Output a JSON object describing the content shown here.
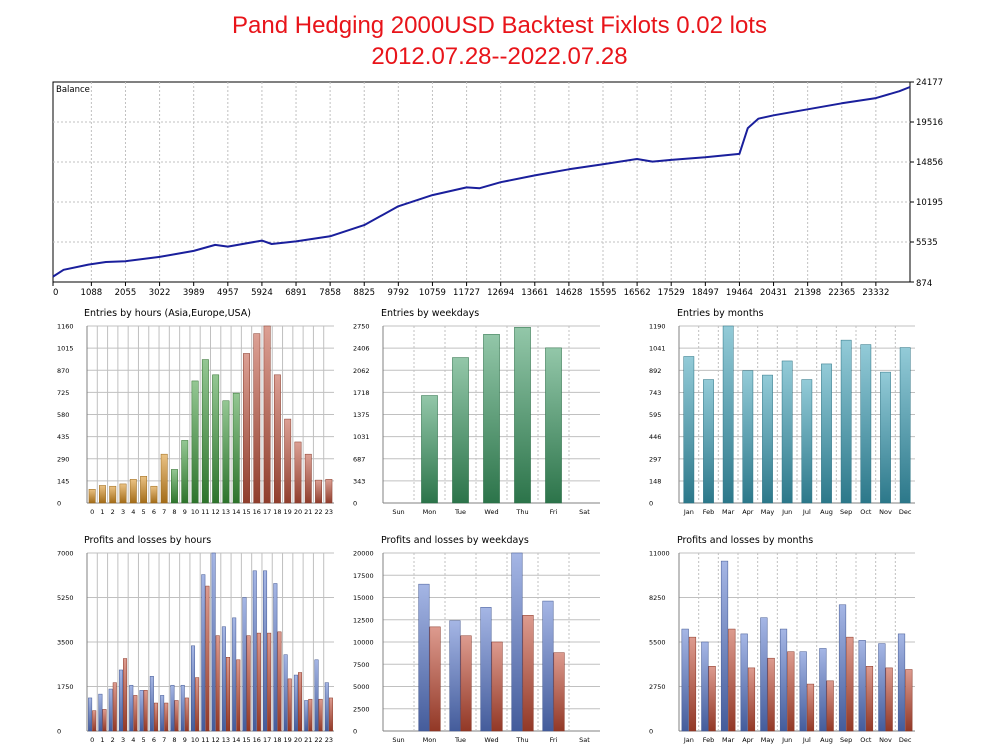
{
  "page": {
    "title_line1": "Pand Hedging 2000USD Backtest Fixlots 0.02 lots",
    "title_line2": "2012.07.28--2022.07.28"
  },
  "colors": {
    "balance_line": "#1a1f9c",
    "title": "#e8141a",
    "grid": "#c0c0c0",
    "asia": "#d99020",
    "europe": "#3d9a3a",
    "usa": "#c0523c",
    "weekday": "#3a9a62",
    "month": "#3aa0b8",
    "profit": "#5b7bcf",
    "loss": "#c24a33"
  },
  "chart_data": [
    {
      "id": "balance",
      "type": "line",
      "title": "Balance",
      "x_ticks": [
        "0",
        "1088",
        "2055",
        "3022",
        "3989",
        "4957",
        "5924",
        "6891",
        "7858",
        "8825",
        "9792",
        "10759",
        "11727",
        "12694",
        "13661",
        "14628",
        "15595",
        "16562",
        "17529",
        "18497",
        "19464",
        "20431",
        "21398",
        "22365",
        "23332"
      ],
      "y_ticks": [
        "874",
        "5535",
        "10195",
        "14856",
        "19516",
        "24177"
      ],
      "xlim": [
        0,
        24300
      ],
      "ylim": [
        874,
        24177
      ],
      "grid": true,
      "x": [
        0,
        300,
        1000,
        1500,
        2055,
        3022,
        3989,
        4600,
        4957,
        5924,
        6200,
        6891,
        7858,
        8825,
        9792,
        10759,
        11727,
        12100,
        12694,
        13661,
        14628,
        15595,
        16562,
        17000,
        17529,
        18497,
        19464,
        19700,
        20000,
        20431,
        21398,
        22365,
        23332,
        24000,
        24300
      ],
      "y": [
        1500,
        2300,
        2900,
        3200,
        3300,
        3800,
        4500,
        5200,
        5000,
        5700,
        5300,
        5600,
        6200,
        7500,
        9700,
        11000,
        11900,
        11800,
        12500,
        13300,
        14000,
        14600,
        15200,
        14900,
        15100,
        15400,
        15800,
        18800,
        19900,
        20300,
        21000,
        21700,
        22300,
        23100,
        23600
      ]
    },
    {
      "id": "entries_hours",
      "type": "bar",
      "title": "Entries by hours (Asia,Europe,USA)",
      "categories": [
        "0",
        "1",
        "2",
        "3",
        "4",
        "5",
        "6",
        "7",
        "8",
        "9",
        "10",
        "11",
        "12",
        "13",
        "14",
        "15",
        "16",
        "17",
        "18",
        "19",
        "20",
        "21",
        "22",
        "23"
      ],
      "values": [
        90,
        115,
        110,
        125,
        155,
        175,
        110,
        320,
        220,
        410,
        800,
        940,
        840,
        670,
        720,
        980,
        1110,
        1160,
        840,
        550,
        400,
        320,
        150,
        155
      ],
      "color_groups": [
        "asia",
        "asia",
        "asia",
        "asia",
        "asia",
        "asia",
        "asia",
        "asia",
        "europe",
        "europe",
        "europe",
        "europe",
        "europe",
        "europe",
        "europe",
        "usa",
        "usa",
        "usa",
        "usa",
        "usa",
        "usa",
        "usa",
        "usa",
        "usa"
      ],
      "y_ticks": [
        "0",
        "145",
        "290",
        "435",
        "580",
        "725",
        "870",
        "1015",
        "1160"
      ],
      "ylim": [
        0,
        1160
      ]
    },
    {
      "id": "entries_weekdays",
      "type": "bar",
      "title": "Entries by weekdays",
      "categories": [
        "Sun",
        "Mon",
        "Tue",
        "Wed",
        "Thu",
        "Fri",
        "Sat"
      ],
      "values": [
        0,
        1670,
        2260,
        2620,
        2730,
        2410,
        0
      ],
      "y_ticks": [
        "0",
        "343",
        "687",
        "1031",
        "1375",
        "1718",
        "2062",
        "2406",
        "2750"
      ],
      "ylim": [
        0,
        2750
      ]
    },
    {
      "id": "entries_months",
      "type": "bar",
      "title": "Entries by months",
      "categories": [
        "Jan",
        "Feb",
        "Mar",
        "Apr",
        "May",
        "Jun",
        "Jul",
        "Aug",
        "Sep",
        "Oct",
        "Nov",
        "Dec"
      ],
      "values": [
        985,
        830,
        1190,
        890,
        860,
        955,
        830,
        935,
        1095,
        1065,
        880,
        1045
      ],
      "y_ticks": [
        "0",
        "148",
        "297",
        "446",
        "595",
        "743",
        "892",
        "1041",
        "1190"
      ],
      "ylim": [
        0,
        1190
      ]
    },
    {
      "id": "pl_hours",
      "type": "bar",
      "title": "Profits and losses by hours",
      "categories": [
        "0",
        "1",
        "2",
        "3",
        "4",
        "5",
        "6",
        "7",
        "8",
        "9",
        "10",
        "11",
        "12",
        "13",
        "14",
        "15",
        "16",
        "17",
        "18",
        "19",
        "20",
        "21",
        "22",
        "23"
      ],
      "series": [
        {
          "values": [
            1300,
            1450,
            1650,
            2400,
            1800,
            1600,
            2150,
            1400,
            1800,
            1800,
            3350,
            6150,
            7000,
            4100,
            4450,
            5250,
            6300,
            6300,
            5800,
            3000,
            2200,
            1200,
            2800,
            1900
          ]
        },
        {
          "values": [
            800,
            850,
            1900,
            2850,
            1400,
            1600,
            1100,
            1100,
            1200,
            1300,
            2100,
            5700,
            3750,
            2900,
            2800,
            3750,
            3850,
            3850,
            3900,
            2050,
            2300,
            1250,
            1250,
            1300
          ]
        }
      ],
      "y_ticks": [
        "0",
        "1750",
        "3500",
        "5250",
        "7000"
      ],
      "ylim": [
        0,
        7000
      ]
    },
    {
      "id": "pl_weekdays",
      "type": "bar",
      "title": "Profits and losses by weekdays",
      "categories": [
        "Sun",
        "Mon",
        "Tue",
        "Wed",
        "Thu",
        "Fri",
        "Sat"
      ],
      "series": [
        {
          "values": [
            0,
            16500,
            12400,
            13900,
            20000,
            14600,
            0
          ]
        },
        {
          "values": [
            0,
            11700,
            10700,
            10000,
            13000,
            8800,
            0
          ]
        }
      ],
      "y_ticks": [
        "0",
        "2500",
        "5000",
        "7500",
        "10000",
        "12500",
        "15000",
        "17500",
        "20000"
      ],
      "ylim": [
        0,
        20000
      ]
    },
    {
      "id": "pl_months",
      "type": "bar",
      "title": "Profits and losses by months",
      "categories": [
        "Jan",
        "Feb",
        "Mar",
        "Apr",
        "May",
        "Jun",
        "Jul",
        "Aug",
        "Sep",
        "Oct",
        "Nov",
        "Dec"
      ],
      "series": [
        {
          "values": [
            6300,
            5500,
            10500,
            6000,
            7000,
            6300,
            4900,
            5100,
            7800,
            5600,
            5400,
            6000
          ]
        },
        {
          "values": [
            5800,
            4000,
            6300,
            3900,
            4500,
            4900,
            2900,
            3100,
            5800,
            4000,
            3900,
            3800
          ]
        }
      ],
      "y_ticks": [
        "0",
        "2750",
        "5500",
        "8250",
        "11000"
      ],
      "ylim": [
        0,
        11000
      ]
    }
  ]
}
